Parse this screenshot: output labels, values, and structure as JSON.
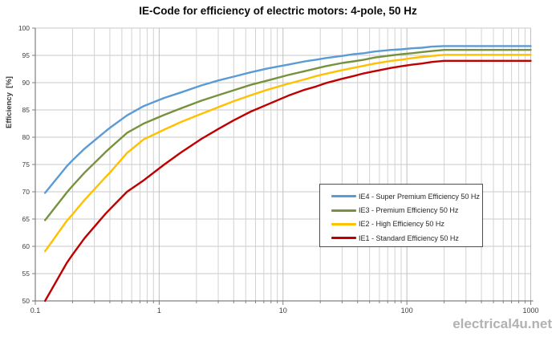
{
  "title": "IE-Code for efficiency of electric motors: 4-pole, 50 Hz",
  "watermark": "electrical4u.net",
  "colors": {
    "ie4": "#5B9BD5",
    "ie3": "#76923C",
    "ie2": "#FFC000",
    "ie1": "#C00000",
    "grid_minor": "#D2D2D2",
    "grid_major": "#BFBFBF",
    "grid_horizontal": "#C9C9C9",
    "axis": "#808080",
    "tick_label": "#404040",
    "legend_border": "#4D4D4D",
    "watermark": "#B2B2B2"
  },
  "axes": {
    "y": {
      "title": "Efficiency  [%]",
      "min": 50,
      "max": 100,
      "step": 5,
      "ticks": [
        100,
        95,
        90,
        85,
        80,
        75,
        70,
        65,
        60,
        55,
        50
      ]
    },
    "x": {
      "scale": "log",
      "min": 0.1,
      "max": 1000,
      "ticks": [
        0.1,
        1,
        10,
        100,
        1000
      ],
      "tick_labels": [
        "0.1",
        "1",
        "10",
        "100",
        "1000"
      ]
    }
  },
  "chart_data": {
    "type": "line",
    "title": "IE-Code for efficiency of electric motors: 4-pole, 50 Hz",
    "xlabel": "",
    "ylabel": "Efficiency [%]",
    "x_scale": "log",
    "xlim": [
      0.1,
      1000
    ],
    "ylim": [
      50,
      100
    ],
    "grid": true,
    "legend_position": "center-right",
    "x": [
      0.12,
      0.18,
      0.2,
      0.25,
      0.37,
      0.4,
      0.55,
      0.75,
      1.1,
      1.5,
      2.2,
      3,
      4,
      5.5,
      7.5,
      11,
      15,
      18.5,
      22,
      30,
      37,
      45,
      55,
      75,
      90,
      110,
      132,
      160,
      200,
      250,
      315,
      400,
      500,
      630,
      800,
      1000
    ],
    "series": [
      {
        "id": "ie4",
        "name": "IE4 - Super Premium Efficiency 50 Hz",
        "color": "#5B9BD5",
        "values": [
          69.8,
          74.7,
          75.8,
          77.9,
          81.1,
          81.7,
          84.0,
          85.7,
          87.2,
          88.2,
          89.5,
          90.4,
          91.1,
          91.9,
          92.6,
          93.3,
          93.9,
          94.2,
          94.5,
          94.9,
          95.2,
          95.4,
          95.7,
          96.0,
          96.1,
          96.3,
          96.4,
          96.6,
          96.7,
          96.7,
          96.7,
          96.7,
          96.7,
          96.7,
          96.7,
          96.7
        ]
      },
      {
        "id": "ie3",
        "name": "IE3 - Premium Efficiency 50 Hz",
        "color": "#76923C",
        "values": [
          64.8,
          69.9,
          71.1,
          73.5,
          77.3,
          78.0,
          80.8,
          82.5,
          84.1,
          85.3,
          86.7,
          87.7,
          88.6,
          89.6,
          90.4,
          91.4,
          92.1,
          92.6,
          93.0,
          93.6,
          93.9,
          94.2,
          94.6,
          95.0,
          95.2,
          95.4,
          95.6,
          95.8,
          96.0,
          96.0,
          96.0,
          96.0,
          96.0,
          96.0,
          96.0,
          96.0
        ]
      },
      {
        "id": "ie2",
        "name": "IE2 - High Efficiency 50 Hz",
        "color": "#FFC000",
        "values": [
          59.1,
          64.7,
          65.9,
          68.5,
          72.7,
          73.5,
          77.1,
          79.6,
          81.4,
          82.8,
          84.3,
          85.5,
          86.6,
          87.7,
          88.7,
          89.8,
          90.6,
          91.2,
          91.6,
          92.3,
          92.7,
          93.1,
          93.5,
          94.0,
          94.2,
          94.5,
          94.7,
          94.9,
          95.1,
          95.1,
          95.1,
          95.1,
          95.1,
          95.1,
          95.1,
          95.1
        ]
      },
      {
        "id": "ie1",
        "name": "IE1 - Standard Efficiency 50 Hz",
        "color": "#C00000",
        "values": [
          50.0,
          57.0,
          58.5,
          61.5,
          66.0,
          66.8,
          70.0,
          72.1,
          75.0,
          77.2,
          79.7,
          81.5,
          83.1,
          84.7,
          86.0,
          87.6,
          88.7,
          89.3,
          89.9,
          90.7,
          91.2,
          91.7,
          92.1,
          92.7,
          93.0,
          93.3,
          93.5,
          93.8,
          94.0,
          94.0,
          94.0,
          94.0,
          94.0,
          94.0,
          94.0,
          94.0
        ]
      }
    ]
  }
}
